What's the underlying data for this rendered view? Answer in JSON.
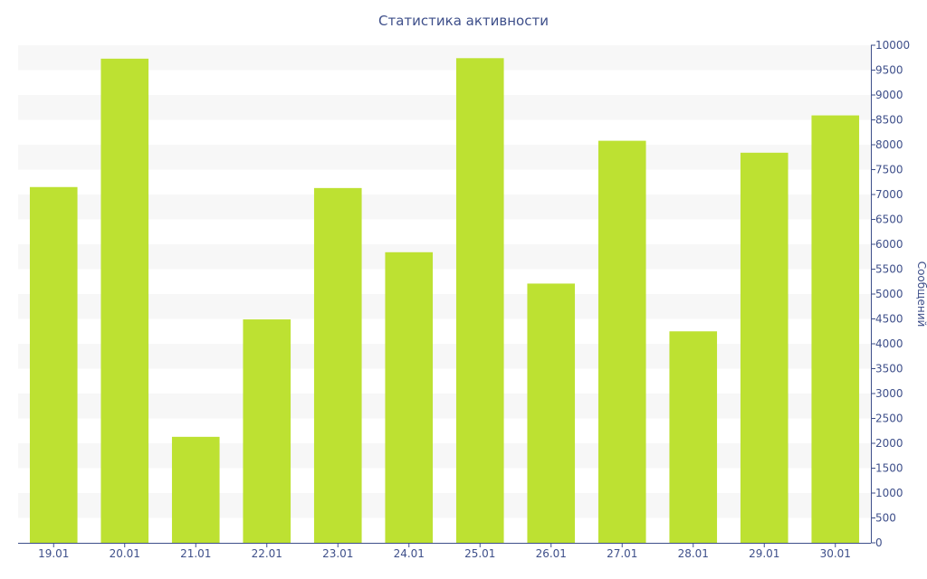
{
  "chart_data": {
    "type": "bar",
    "title": "Статистика активности",
    "xlabel": "",
    "ylabel": "Сообщений",
    "y_axis_side": "right",
    "ylim": [
      0,
      10000
    ],
    "ytick_step": 500,
    "grid": "alternating horizontal bands",
    "categories": [
      "19.01",
      "20.01",
      "21.01",
      "22.01",
      "23.01",
      "24.01",
      "25.01",
      "26.01",
      "27.01",
      "28.01",
      "29.01",
      "30.01"
    ],
    "values": [
      7150,
      9730,
      2130,
      4490,
      7130,
      5840,
      9740,
      5210,
      8080,
      4250,
      7840,
      8590
    ]
  },
  "colors": {
    "bar": "#bde132",
    "band": "#f7f7f7",
    "axis": "#3e4f8a",
    "text": "#3e4f8a"
  }
}
